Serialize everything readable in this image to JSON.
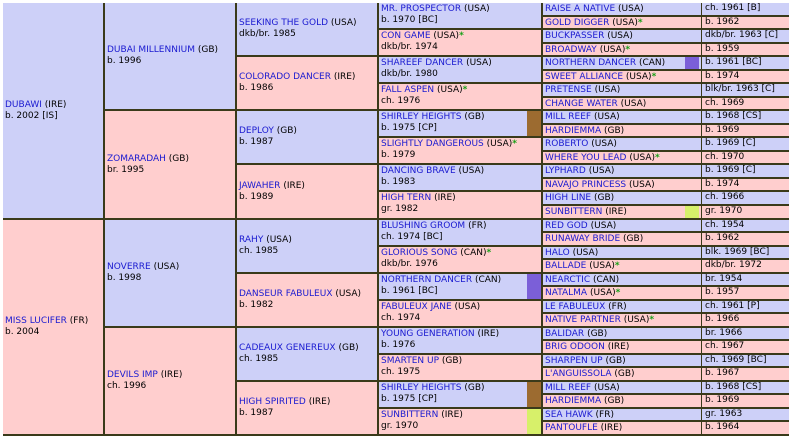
{
  "colors": {
    "male_bg": "#cdd0f8",
    "female_bg": "#ffcece",
    "border": "#3a3a1a",
    "link": "#1a1ad0",
    "star": "#17a017"
  },
  "gen1": [
    {
      "name": "DUBAWI",
      "country": "(IRE)",
      "info": "b. 2002 [IS]",
      "sex": "m"
    },
    {
      "name": "MISS LUCIFER",
      "country": "(FR)",
      "info": "b. 2004",
      "sex": "f"
    }
  ],
  "gen2": [
    {
      "name": "DUBAI MILLENNIUM",
      "country": "(GB)",
      "info": "b. 1996",
      "sex": "m"
    },
    {
      "name": "ZOMARADAH",
      "country": "(GB)",
      "info": "br. 1995",
      "sex": "f"
    },
    {
      "name": "NOVERRE",
      "country": "(USA)",
      "info": "b. 1998",
      "sex": "m"
    },
    {
      "name": "DEVILS IMP",
      "country": "(IRE)",
      "info": "ch. 1996",
      "sex": "f"
    }
  ],
  "gen3": [
    {
      "name": "SEEKING THE GOLD",
      "country": "(USA)",
      "info": "dkb/br. 1985",
      "sex": "m"
    },
    {
      "name": "COLORADO DANCER",
      "country": "(IRE)",
      "info": "b. 1986",
      "sex": "f"
    },
    {
      "name": "DEPLOY",
      "country": "(GB)",
      "info": "b. 1987",
      "sex": "m"
    },
    {
      "name": "JAWAHER",
      "country": "(IRE)",
      "info": "b. 1989",
      "sex": "f"
    },
    {
      "name": "RAHY",
      "country": "(USA)",
      "info": "ch. 1985",
      "sex": "m"
    },
    {
      "name": "DANSEUR FABULEUX",
      "country": "(USA)",
      "info": "b. 1982",
      "sex": "f"
    },
    {
      "name": "CADEAUX GENEREUX",
      "country": "(GB)",
      "info": "ch. 1985",
      "sex": "m"
    },
    {
      "name": "HIGH SPIRITED",
      "country": "(IRE)",
      "info": "b. 1987",
      "sex": "f"
    }
  ],
  "gen4": [
    {
      "name": "MR. PROSPECTOR",
      "country": "(USA)",
      "info": "b. 1970 [BC]",
      "sex": "m",
      "star": ""
    },
    {
      "name": "CON GAME",
      "country": "(USA)",
      "info": "dkb/br. 1974",
      "sex": "f",
      "star": "*"
    },
    {
      "name": "SHAREEF DANCER",
      "country": "(USA)",
      "info": "dkb/br. 1980",
      "sex": "m",
      "star": ""
    },
    {
      "name": "FALL ASPEN",
      "country": "(USA)",
      "info": "ch. 1976",
      "sex": "f",
      "star": "*"
    },
    {
      "name": "SHIRLEY HEIGHTS",
      "country": "(GB)",
      "info": "b. 1975 [CP]",
      "sex": "m",
      "star": "",
      "bar": "#9c6b30"
    },
    {
      "name": "SLIGHTLY DANGEROUS",
      "country": "(USA)",
      "info": "b. 1979",
      "sex": "f",
      "star": "*"
    },
    {
      "name": "DANCING BRAVE",
      "country": "(USA)",
      "info": "b. 1983",
      "sex": "m",
      "star": ""
    },
    {
      "name": "HIGH TERN",
      "country": "(IRE)",
      "info": "gr. 1982",
      "sex": "f",
      "star": ""
    },
    {
      "name": "BLUSHING GROOM",
      "country": "(FR)",
      "info": "ch. 1974 [BC]",
      "sex": "m",
      "star": ""
    },
    {
      "name": "GLORIOUS SONG",
      "country": "(CAN)",
      "info": "dkb/br. 1976",
      "sex": "f",
      "star": "*"
    },
    {
      "name": "NORTHERN DANCER",
      "country": "(CAN)",
      "info": "b. 1961 [BC]",
      "sex": "m",
      "star": "",
      "bar": "#7b5fd8"
    },
    {
      "name": "FABULEUX JANE",
      "country": "(USA)",
      "info": "ch. 1974",
      "sex": "f",
      "star": ""
    },
    {
      "name": "YOUNG GENERATION",
      "country": "(IRE)",
      "info": "b. 1976",
      "sex": "m",
      "star": ""
    },
    {
      "name": "SMARTEN UP",
      "country": "(GB)",
      "info": "ch. 1975",
      "sex": "f",
      "star": ""
    },
    {
      "name": "SHIRLEY HEIGHTS",
      "country": "(GB)",
      "info": "b. 1975 [CP]",
      "sex": "m",
      "star": "",
      "bar": "#9c6b30"
    },
    {
      "name": "SUNBITTERN",
      "country": "(IRE)",
      "info": "gr. 1970",
      "sex": "f",
      "star": "",
      "bar": "#d7f06a"
    }
  ],
  "gen5": [
    {
      "name": "RAISE A NATIVE",
      "country": "(USA)",
      "info": "ch. 1961 [B]",
      "sex": "m",
      "star": ""
    },
    {
      "name": "GOLD DIGGER",
      "country": "(USA)",
      "info": "b. 1962",
      "sex": "f",
      "star": "*"
    },
    {
      "name": "BUCKPASSER",
      "country": "(USA)",
      "info": "dkb/br. 1963 [C]",
      "sex": "m",
      "star": ""
    },
    {
      "name": "BROADWAY",
      "country": "(USA)",
      "info": "b. 1959",
      "sex": "f",
      "star": "*"
    },
    {
      "name": "NORTHERN DANCER",
      "country": "(CAN)",
      "info": "b. 1961 [BC]",
      "sex": "m",
      "star": "",
      "bar": "#7b5fd8"
    },
    {
      "name": "SWEET ALLIANCE",
      "country": "(USA)",
      "info": "b. 1974",
      "sex": "f",
      "star": "*"
    },
    {
      "name": "PRETENSE",
      "country": "(USA)",
      "info": "blk/br. 1963 [C]",
      "sex": "m",
      "star": ""
    },
    {
      "name": "CHANGE WATER",
      "country": "(USA)",
      "info": "ch. 1969",
      "sex": "f",
      "star": ""
    },
    {
      "name": "MILL REEF",
      "country": "(USA)",
      "info": "b. 1968 [CS]",
      "sex": "m",
      "star": ""
    },
    {
      "name": "HARDIEMMA",
      "country": "(GB)",
      "info": "b. 1969",
      "sex": "f",
      "star": ""
    },
    {
      "name": "ROBERTO",
      "country": "(USA)",
      "info": "b. 1969 [C]",
      "sex": "m",
      "star": ""
    },
    {
      "name": "WHERE YOU LEAD",
      "country": "(USA)",
      "info": "ch. 1970",
      "sex": "f",
      "star": "*"
    },
    {
      "name": "LYPHARD",
      "country": "(USA)",
      "info": "b. 1969 [C]",
      "sex": "m",
      "star": ""
    },
    {
      "name": "NAVAJO PRINCESS",
      "country": "(USA)",
      "info": "b. 1974",
      "sex": "f",
      "star": ""
    },
    {
      "name": "HIGH LINE",
      "country": "(GB)",
      "info": "ch. 1966",
      "sex": "m",
      "star": ""
    },
    {
      "name": "SUNBITTERN",
      "country": "(IRE)",
      "info": "gr. 1970",
      "sex": "f",
      "star": "",
      "bar": "#d7f06a"
    },
    {
      "name": "RED GOD",
      "country": "(USA)",
      "info": "ch. 1954",
      "sex": "m",
      "star": ""
    },
    {
      "name": "RUNAWAY BRIDE",
      "country": "(GB)",
      "info": "b. 1962",
      "sex": "f",
      "star": ""
    },
    {
      "name": "HALO",
      "country": "(USA)",
      "info": "blk. 1969 [BC]",
      "sex": "m",
      "star": ""
    },
    {
      "name": "BALLADE",
      "country": "(USA)",
      "info": "dkb/br. 1972",
      "sex": "f",
      "star": "*"
    },
    {
      "name": "NEARCTIC",
      "country": "(CAN)",
      "info": "br. 1954",
      "sex": "m",
      "star": ""
    },
    {
      "name": "NATALMA",
      "country": "(USA)",
      "info": "b. 1957",
      "sex": "f",
      "star": "*"
    },
    {
      "name": "LE FABULEUX",
      "country": "(FR)",
      "info": "ch. 1961 [P]",
      "sex": "m",
      "star": ""
    },
    {
      "name": "NATIVE PARTNER",
      "country": "(USA)",
      "info": "b. 1966",
      "sex": "f",
      "star": "*"
    },
    {
      "name": "BALIDAR",
      "country": "(GB)",
      "info": "br. 1966",
      "sex": "m",
      "star": ""
    },
    {
      "name": "BRIG ODOON",
      "country": "(IRE)",
      "info": "ch. 1967",
      "sex": "f",
      "star": ""
    },
    {
      "name": "SHARPEN UP",
      "country": "(GB)",
      "info": "ch. 1969 [BC]",
      "sex": "m",
      "star": ""
    },
    {
      "name": "L'ANGUISSOLA",
      "country": "(GB)",
      "info": "b. 1967",
      "sex": "f",
      "star": ""
    },
    {
      "name": "MILL REEF",
      "country": "(USA)",
      "info": "b. 1968 [CS]",
      "sex": "m",
      "star": ""
    },
    {
      "name": "HARDIEMMA",
      "country": "(GB)",
      "info": "b. 1969",
      "sex": "f",
      "star": ""
    },
    {
      "name": "SEA HAWK",
      "country": "(FR)",
      "info": "gr. 1963",
      "sex": "m",
      "star": ""
    },
    {
      "name": "PANTOUFLE",
      "country": "(IRE)",
      "info": "b. 1964",
      "sex": "f",
      "star": ""
    }
  ]
}
